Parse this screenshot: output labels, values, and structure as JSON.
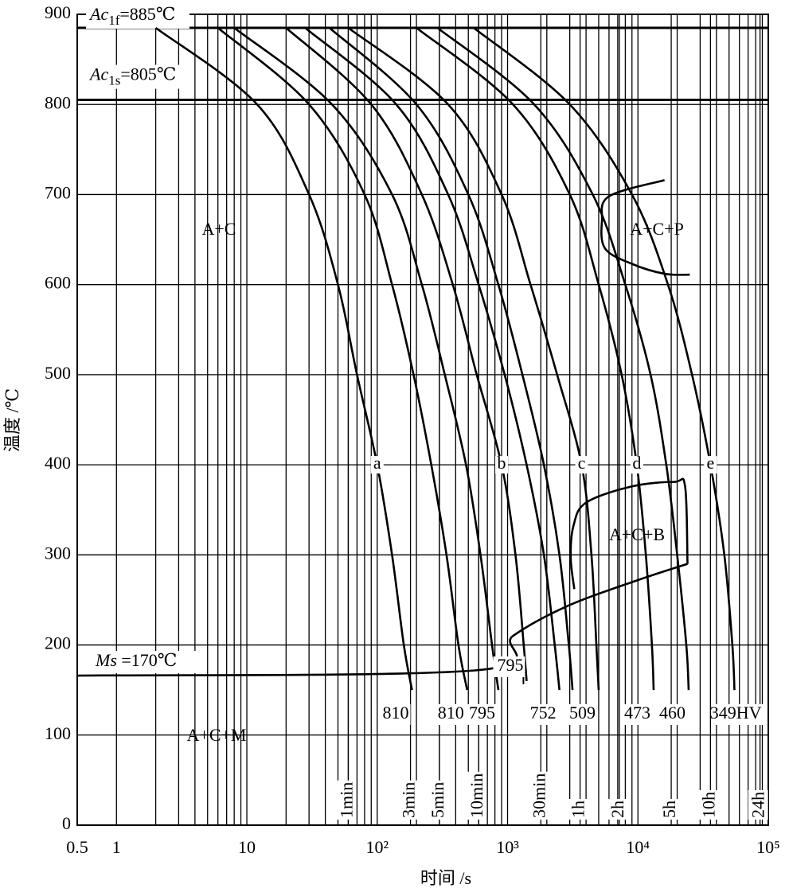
{
  "chart_data": {
    "type": "line",
    "x_label": "时间 /s",
    "y_label": "温度 /℃",
    "xscale": "log",
    "xlim": [
      0.5,
      100000
    ],
    "ylim": [
      0,
      900
    ],
    "xticks": [
      0.5,
      1,
      10,
      {
        "value": 100,
        "label": "10²"
      },
      {
        "value": 1000,
        "label": "10³"
      },
      {
        "value": 10000,
        "label": "10⁴"
      },
      {
        "value": 100000,
        "label": "10⁵"
      }
    ],
    "xgrid_minor": [
      2,
      3,
      4,
      5,
      6,
      7,
      8,
      9,
      20,
      30,
      40,
      50,
      60,
      70,
      80,
      90,
      200,
      300,
      400,
      500,
      600,
      700,
      800,
      900,
      2000,
      3000,
      4000,
      5000,
      6000,
      7000,
      8000,
      9000,
      20000,
      30000,
      40000,
      50000,
      60000,
      70000,
      80000,
      90000
    ],
    "yticks": [
      0,
      100,
      200,
      300,
      400,
      500,
      600,
      700,
      800,
      900
    ],
    "grid": true,
    "reference_lines": [
      {
        "value": 885,
        "main": "Ac",
        "sub": "1f",
        "rest": "=885℃"
      },
      {
        "value": 805,
        "main": "Ac",
        "sub": "1s",
        "rest": "=805℃"
      }
    ],
    "time_marks": [
      {
        "value": 60,
        "label": "1min"
      },
      {
        "value": 180,
        "label": "3min"
      },
      {
        "value": 300,
        "label": "5min"
      },
      {
        "value": 600,
        "label": "10min"
      },
      {
        "value": 1800,
        "label": "30min"
      },
      {
        "value": 3600,
        "label": "1h"
      },
      {
        "value": 7200,
        "label": "2h"
      },
      {
        "value": 18000,
        "label": "5h"
      },
      {
        "value": 36000,
        "label": "10h"
      },
      {
        "value": 86400,
        "label": "24h"
      }
    ],
    "regions": [
      "A+C",
      "A+C+P",
      "A+C+B",
      "A+C+M"
    ],
    "ms_label": {
      "main": "Ms",
      "rest": " =170℃"
    },
    "series": [
      {
        "color": "#000",
        "letter": "a",
        "end_label": "810",
        "x": [
          2,
          12,
          30,
          50,
          70,
          100,
          130,
          160,
          185
        ],
        "values": [
          885,
          800,
          700,
          600,
          500,
          400,
          300,
          200,
          150
        ]
      },
      {
        "color": "#000",
        "end_label": "810",
        "x": [
          6,
          30,
          80,
          130,
          190,
          260,
          340,
          420,
          490
        ],
        "values": [
          885,
          800,
          700,
          600,
          500,
          400,
          300,
          200,
          150
        ]
      },
      {
        "color": "#000",
        "end_label": "795",
        "x": [
          8,
          45,
          130,
          220,
          330,
          480,
          620,
          760,
          850
        ],
        "values": [
          885,
          800,
          700,
          600,
          500,
          400,
          300,
          200,
          150
        ]
      },
      {
        "color": "#000",
        "letter": "b",
        "end_label": "795",
        "x": [
          20,
          90,
          220,
          380,
          580,
          900,
          1150,
          1330,
          1400
        ],
        "values": [
          885,
          800,
          700,
          600,
          500,
          400,
          300,
          200,
          160
        ]
      },
      {
        "color": "#000",
        "end_label": "752",
        "x": [
          28,
          140,
          350,
          600,
          950,
          1400,
          1900,
          2300,
          2500
        ],
        "values": [
          885,
          800,
          700,
          600,
          500,
          400,
          300,
          200,
          150
        ]
      },
      {
        "color": "#000",
        "x": [
          43,
          200,
          500,
          850,
          1300,
          1900,
          2500,
          2950,
          3150
        ],
        "values": [
          885,
          800,
          700,
          600,
          500,
          400,
          300,
          200,
          150
        ]
      },
      {
        "color": "#000",
        "letter": "c",
        "end_label": "509",
        "x": [
          60,
          350,
          900,
          1500,
          2400,
          3700,
          4400,
          4800,
          5000
        ],
        "values": [
          885,
          800,
          700,
          600,
          500,
          400,
          300,
          200,
          150
        ]
      },
      {
        "color": "#000",
        "letter": "d",
        "end_label": "473",
        "x": [
          200,
          1100,
          3000,
          5000,
          7500,
          9800,
          11500,
          12800,
          13200
        ],
        "values": [
          885,
          800,
          700,
          600,
          500,
          400,
          300,
          200,
          150
        ]
      },
      {
        "color": "#000",
        "end_label": "460",
        "x": [
          290,
          1600,
          4500,
          8000,
          12500,
          16500,
          20000,
          23500,
          24500
        ],
        "values": [
          885,
          800,
          700,
          600,
          500,
          400,
          300,
          200,
          150
        ]
      },
      {
        "color": "#000",
        "letter": "e",
        "end_label": "349HV",
        "x": [
          550,
          3000,
          9000,
          17000,
          26000,
          36000,
          46000,
          53000,
          55000
        ],
        "values": [
          885,
          800,
          700,
          600,
          500,
          400,
          300,
          200,
          150
        ]
      }
    ],
    "boundaries": [
      {
        "x": [
          0.5,
          585,
          1100,
          2960,
          10000,
          24000
        ],
        "values": [
          166,
          172,
          210,
          244,
          272,
          290
        ]
      },
      {
        "x": [
          24000,
          23000,
          19000,
          9000,
          4000,
          3200,
          3050,
          3250
        ],
        "values": [
          290,
          376,
          381,
          376,
          358,
          332,
          297,
          262
        ]
      },
      {
        "x": [
          16000,
          6000,
          5300,
          5600,
          9000,
          16000,
          25000
        ],
        "values": [
          716,
          698,
          671,
          640,
          623,
          612,
          611
        ]
      }
    ]
  }
}
